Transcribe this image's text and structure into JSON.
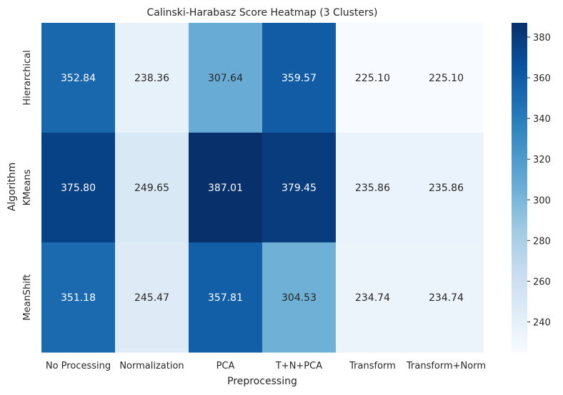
{
  "chart_data": {
    "type": "heatmap",
    "title": "Calinski-Harabasz Score Heatmap (3 Clusters)",
    "xlabel": "Preprocessing",
    "ylabel": "Algorithm",
    "x_categories": [
      "No Processing",
      "Normalization",
      "PCA",
      "T+N+PCA",
      "Transform",
      "Transform+Norm"
    ],
    "y_categories": [
      "Hierarchical",
      "KMeans",
      "MeanShift"
    ],
    "values": [
      [
        352.84,
        238.36,
        307.64,
        359.57,
        225.1,
        225.1
      ],
      [
        375.8,
        249.65,
        387.01,
        379.45,
        235.86,
        235.86
      ],
      [
        351.18,
        245.47,
        357.81,
        304.53,
        234.74,
        234.74
      ]
    ],
    "labels": [
      [
        "352.84",
        "238.36",
        "307.64",
        "359.57",
        "225.10",
        "225.10"
      ],
      [
        "375.80",
        "249.65",
        "387.01",
        "379.45",
        "235.86",
        "235.86"
      ],
      [
        "351.18",
        "245.47",
        "357.81",
        "304.53",
        "234.74",
        "234.74"
      ]
    ],
    "colormap": "Blues",
    "vmin": 225.1,
    "vmax": 387.01,
    "colorbar_ticks": [
      240,
      260,
      280,
      300,
      320,
      340,
      360,
      380
    ],
    "colorbar_tick_labels": [
      "240",
      "260",
      "280",
      "300",
      "320",
      "340",
      "360",
      "380"
    ],
    "grid": false
  }
}
